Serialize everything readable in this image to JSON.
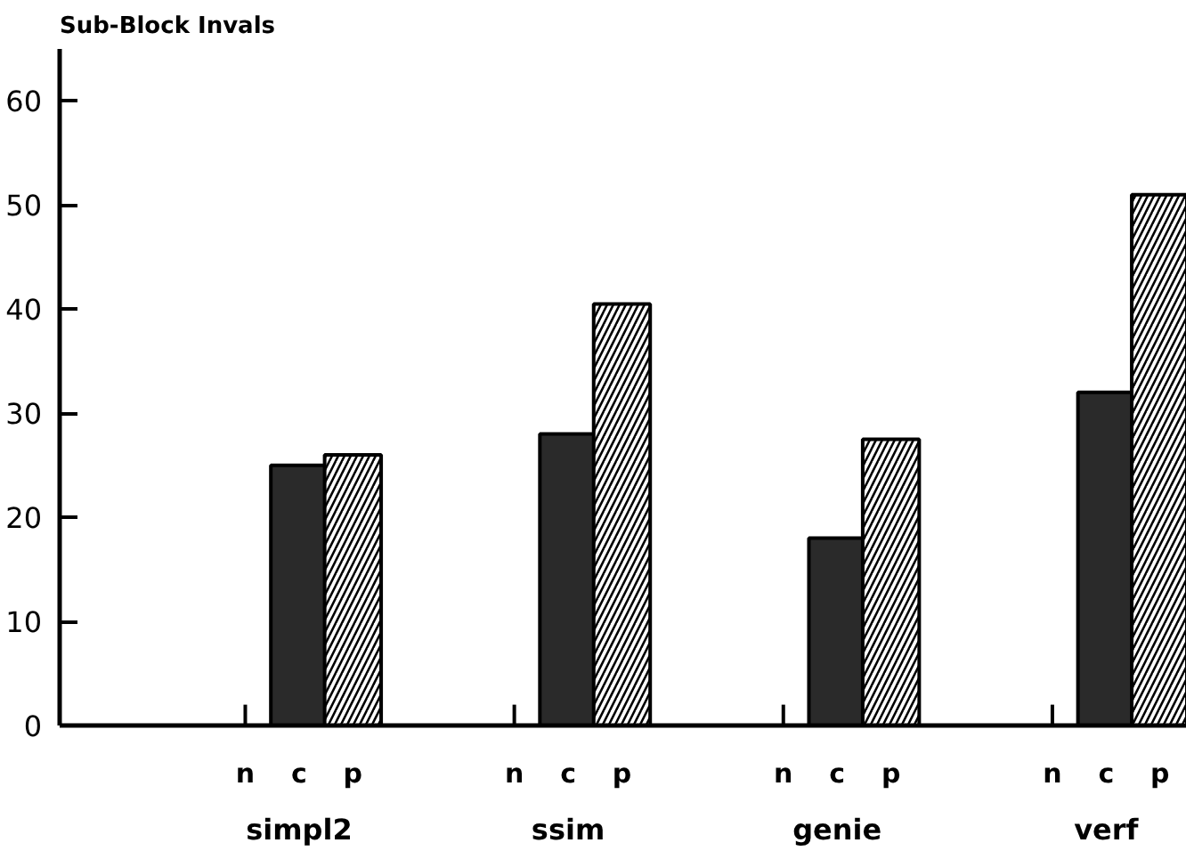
{
  "chart_data": {
    "type": "bar",
    "ylabel": "Sub-Block Invals",
    "categories": [
      "simpl2",
      "ssim",
      "genie",
      "verf"
    ],
    "series": [
      {
        "name": "n",
        "color": "#000000",
        "values": [
          0,
          0,
          0,
          0
        ]
      },
      {
        "name": "c",
        "color": "#2a2a2a",
        "values": [
          25,
          28,
          18,
          32
        ]
      },
      {
        "name": "p",
        "color": "#ffffff",
        "values": [
          26,
          40.5,
          27.5,
          51
        ]
      }
    ],
    "ylim": [
      0,
      65
    ],
    "yticks": [
      0,
      10,
      20,
      30,
      40,
      50,
      60
    ],
    "grid": false,
    "legend": "bottom"
  }
}
